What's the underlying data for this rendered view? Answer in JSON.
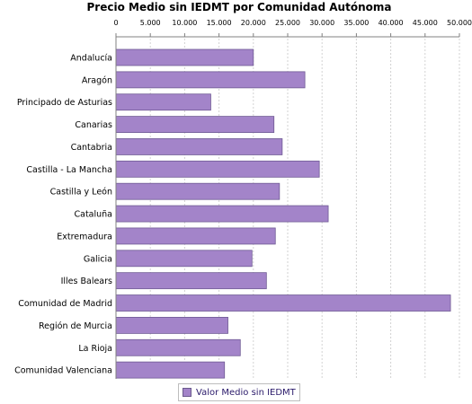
{
  "colors": {
    "bar": "#a384c9",
    "bar_stroke": "#6f5a94",
    "grid": "#d2d2d2",
    "axis": "#808080"
  },
  "chart_data": {
    "type": "bar",
    "orientation": "horizontal",
    "title": "Precio Medio sin IEDMT por Comunidad Autónoma",
    "xlabel": "",
    "ylabel": "",
    "xlim": [
      0,
      50000
    ],
    "x_axis_position": "top",
    "grid": true,
    "legend_position": "bottom",
    "ticks": [
      "0",
      "5.000",
      "10.000",
      "15.000",
      "20.000",
      "25.000",
      "30.000",
      "35.000",
      "40.000",
      "45.000",
      "50.000"
    ],
    "categories": [
      "Andalucía",
      "Aragón",
      "Principado de Asturias",
      "Canarias",
      "Cantabria",
      "Castilla - La Mancha",
      "Castilla y León",
      "Cataluña",
      "Extremadura",
      "Galicia",
      "Illes Balears",
      "Comunidad de Madrid",
      "Región de Murcia",
      "La Rioja",
      "Comunidad Valenciana"
    ],
    "series": [
      {
        "name": "Valor Medio sin IEDMT",
        "values": [
          20000,
          27500,
          13800,
          23000,
          24200,
          29600,
          23800,
          30900,
          23200,
          19800,
          21900,
          48700,
          16300,
          18100,
          15800
        ]
      }
    ]
  }
}
